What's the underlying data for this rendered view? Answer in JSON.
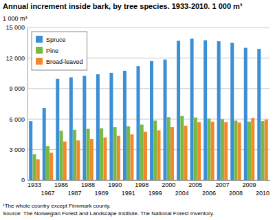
{
  "chart_data": {
    "type": "bar",
    "title": "Annual increment inside bark, by tree species. 1933-2010. 1 000 m³",
    "y_label": "1 000 m³",
    "annotations": [
      "¹The whole country except Finnmark county.",
      "Source: The Norwegian Forest and Landscape Institute. The National Forest Inventory."
    ],
    "categories": [
      "1933",
      "1967",
      "1986",
      "1987",
      "1988",
      "1989",
      "1990",
      "1991",
      "1998",
      "1999",
      "2000",
      "2004",
      "2005",
      "2006",
      "2007",
      "2008",
      "2009",
      "2010"
    ],
    "series": [
      {
        "name": "Spruce",
        "color": "#3b8fd4",
        "values": [
          5800,
          7100,
          9950,
          10100,
          10250,
          10400,
          10550,
          10750,
          11200,
          11700,
          11850,
          13700,
          13900,
          13750,
          13650,
          13500,
          13000,
          12900
        ]
      },
      {
        "name": "Pine",
        "color": "#78b843",
        "values": [
          2550,
          3350,
          4850,
          4950,
          5050,
          5100,
          5200,
          5300,
          5450,
          5850,
          6200,
          6300,
          6150,
          6050,
          6000,
          5850,
          5750,
          5800
        ]
      },
      {
        "name": "Broad-leaved",
        "color": "#f0882c",
        "values": [
          2050,
          2700,
          3800,
          3900,
          4050,
          4200,
          4350,
          4500,
          4750,
          4900,
          5200,
          5350,
          5700,
          5750,
          5700,
          5650,
          6100,
          5950
        ]
      }
    ],
    "ylim": [
      0,
      15000
    ],
    "yticks": [
      0,
      {
        "value": 3000,
        "label": "3 000"
      },
      {
        "value": 6000,
        "label": "6 000"
      },
      {
        "value": 9000,
        "label": "9 000"
      },
      {
        "value": 12000,
        "label": "12 000"
      },
      {
        "value": 15000,
        "label": "15 000"
      }
    ],
    "grid": true,
    "legend": "top-left"
  }
}
